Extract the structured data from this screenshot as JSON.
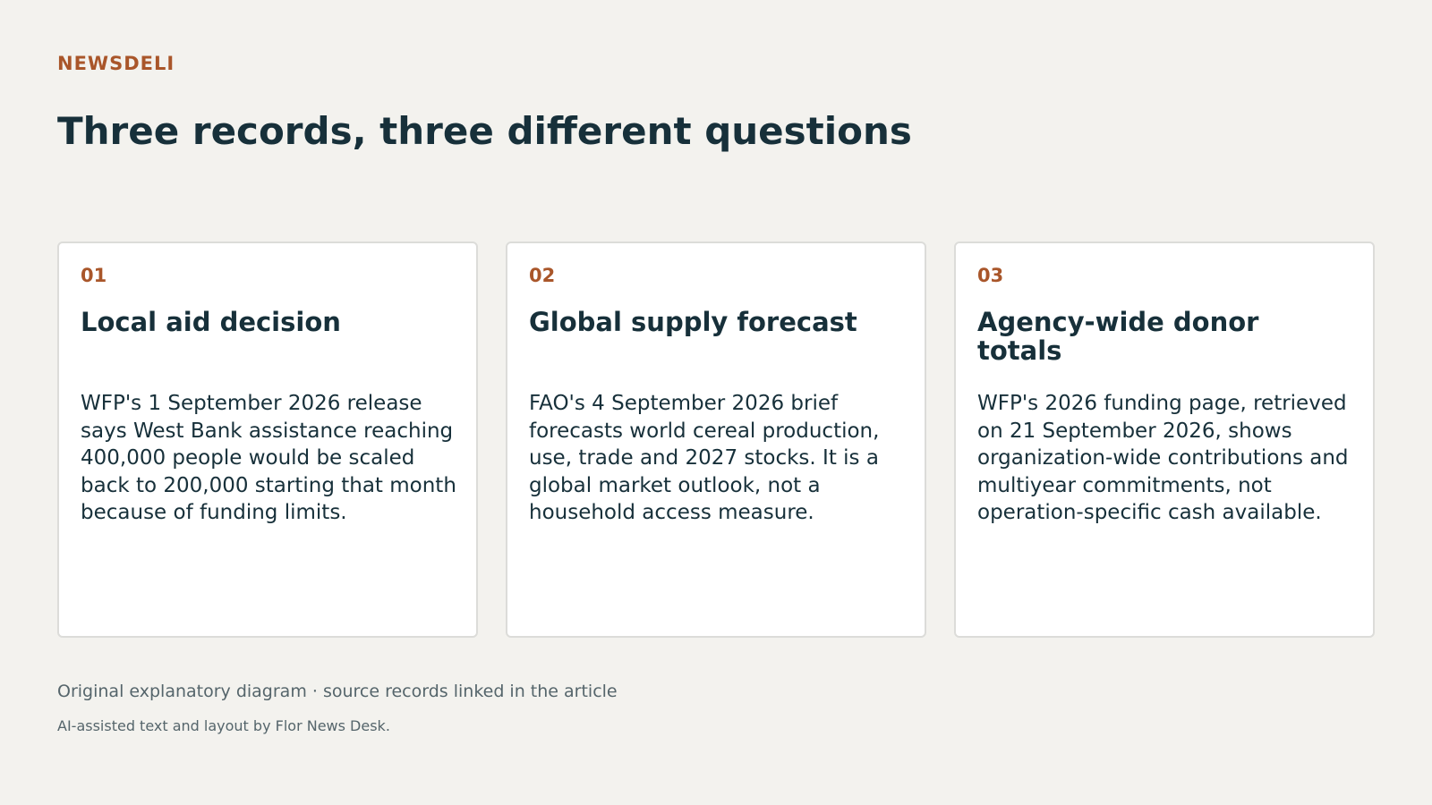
{
  "header": {
    "brand": "NEWSDELI",
    "title": "Three records, three different questions"
  },
  "cards": [
    {
      "number": "01",
      "title": "Local aid decision",
      "body": "WFP's 1 September 2026 release says West Bank assistance reaching 400,000 people would be scaled back to 200,000 starting that month because of funding limits."
    },
    {
      "number": "02",
      "title": "Global supply forecast",
      "body": "FAO's 4 September 2026 brief forecasts world cereal production, use, trade and 2027 stocks. It is a global market outlook, not a household access measure."
    },
    {
      "number": "03",
      "title": "Agency-wide donor totals",
      "body": "WFP's 2026 funding page, retrieved on 21 September 2026, shows organization-wide contributions and multiyear commitments, not operation-specific cash available."
    }
  ],
  "footer": {
    "note": "Original explanatory diagram · source records linked in the article",
    "credit": "AI-assisted text and layout by Flor News Desk."
  },
  "colors": {
    "accent": "#a9562a",
    "heading": "#17303a",
    "background": "#f3f2ee",
    "card": "#ffffff",
    "muted": "#55656b"
  }
}
